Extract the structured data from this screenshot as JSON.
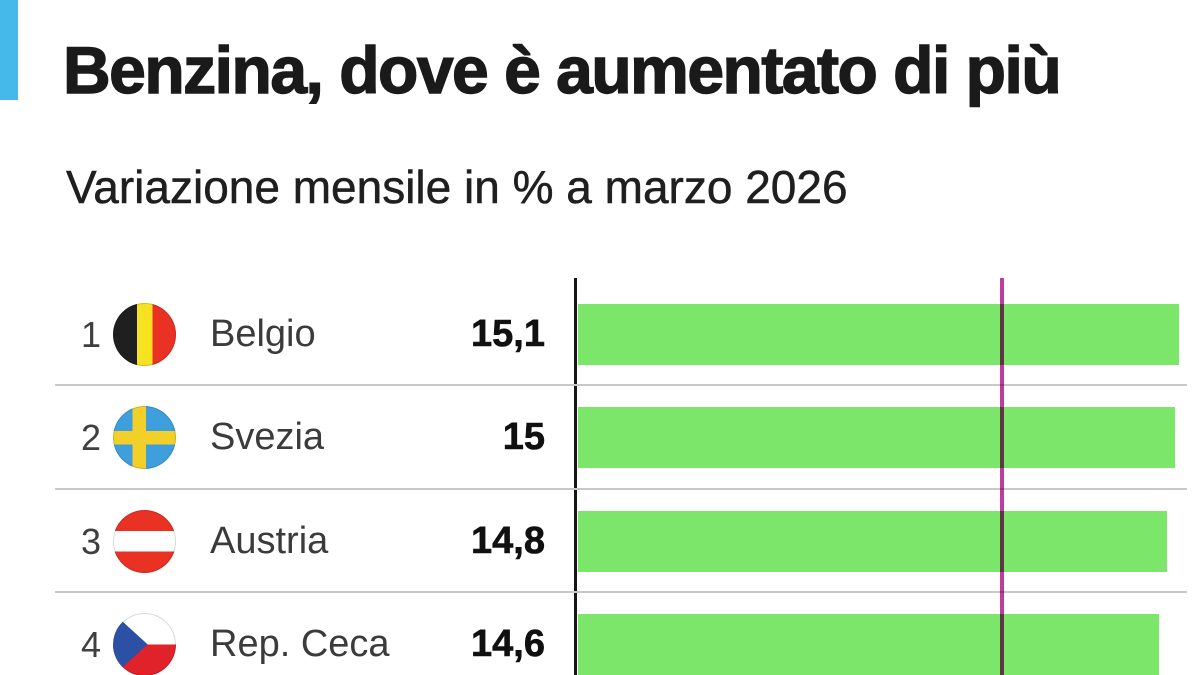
{
  "accent_color": "#45b9e9",
  "header": {
    "title": "Benzina, dove è aumentato di più",
    "subtitle": "Variazione mensile in % a marzo 2026"
  },
  "chart_data": {
    "type": "bar",
    "orientation": "horizontal",
    "title": "Benzina, dove è aumentato di più",
    "subtitle": "Variazione mensile in % a marzo 2026",
    "unit": "%",
    "axis": {
      "min": 0,
      "max_visible": 15.63
    },
    "grid": false,
    "legend": "none",
    "bar_color": "#7be669",
    "axis_line_color": "#161616",
    "reference_line": {
      "value_estimate": 10.65,
      "color": "#c03b9e"
    },
    "categories": [
      "Belgio",
      "Svezia",
      "Austria",
      "Rep. Ceca"
    ],
    "values": [
      15.1,
      15,
      14.8,
      14.6
    ],
    "rows": [
      {
        "rank": "1",
        "country": "Belgio",
        "flag": "be",
        "value": 15.1,
        "value_label": "15,1"
      },
      {
        "rank": "2",
        "country": "Svezia",
        "flag": "se",
        "value": 15,
        "value_label": "15"
      },
      {
        "rank": "3",
        "country": "Austria",
        "flag": "at",
        "value": 14.8,
        "value_label": "14,8"
      },
      {
        "rank": "4",
        "country": "Rep. Ceca",
        "flag": "cz",
        "value": 14.6,
        "value_label": "14,6"
      }
    ]
  }
}
